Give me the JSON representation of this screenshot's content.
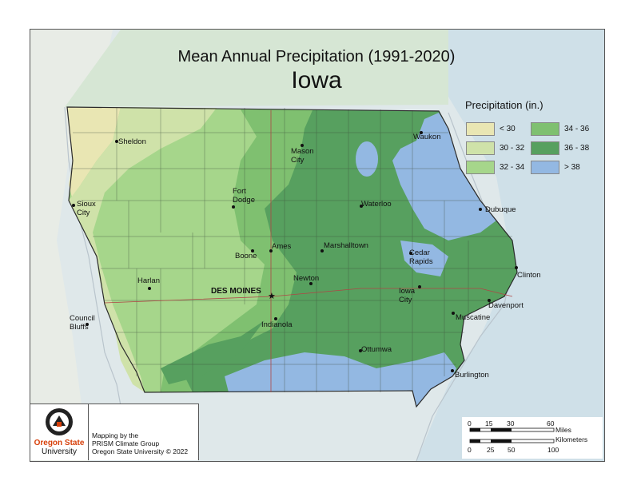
{
  "title": "Mean Annual Precipitation (1991-2020)",
  "subtitle": "Iowa",
  "legend": {
    "title": "Precipitation (in.)",
    "items": [
      {
        "label": "< 30",
        "color": "#e9e6b3"
      },
      {
        "label": "30 - 32",
        "color": "#cfe2a9"
      },
      {
        "label": "32 - 34",
        "color": "#a6d68b"
      },
      {
        "label": "34 - 36",
        "color": "#7fc070"
      },
      {
        "label": "36 - 38",
        "color": "#57a05f"
      },
      {
        "label": "> 38",
        "color": "#93b8e2"
      }
    ]
  },
  "cities": {
    "sheldon": "Sheldon",
    "sioux_city": "Sioux City",
    "fort_dodge": "Fort Dodge",
    "mason_city": "Mason City",
    "waukon": "Waukon",
    "waterloo": "Waterloo",
    "dubuque": "Dubuque",
    "ames": "Ames",
    "boone": "Boone",
    "marshalltown": "Marshalltown",
    "cedar_rapids": "Cedar Rapids",
    "clinton": "Clinton",
    "harlan": "Harlan",
    "des_moines": "DES MOINES",
    "newton": "Newton",
    "iowa_city": "Iowa City",
    "davenport": "Davenport",
    "council_bluffs": "Council Bluffs",
    "indianola": "Indianola",
    "muscatine": "Muscatine",
    "ottumwa": "Ottumwa",
    "burlington": "Burlington"
  },
  "credit": {
    "org_line1": "Oregon State",
    "org_line2": "University",
    "line1": "Mapping by the",
    "line2": "PRISM Climate Group",
    "line3": "Oregon State University © 2022"
  },
  "scale": {
    "miles_unit": "Miles",
    "km_unit": "Kilometers",
    "miles_ticks": [
      "0",
      "15",
      "30",
      "60"
    ],
    "km_ticks": [
      "0",
      "25",
      "50",
      "100"
    ]
  }
}
